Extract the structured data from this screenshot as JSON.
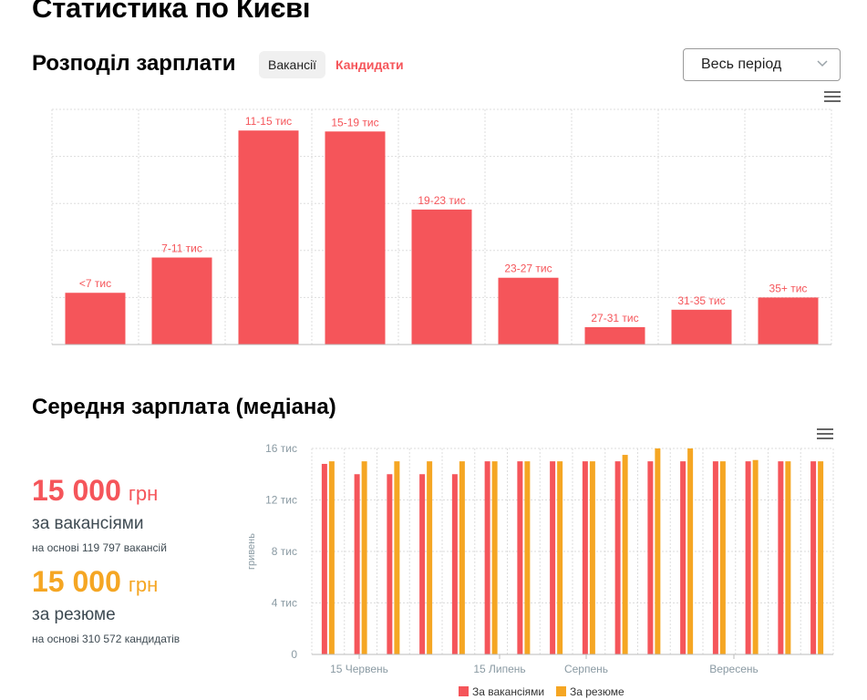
{
  "page": {
    "title": "Статистика по Києві"
  },
  "distribution": {
    "title": "Розподіл зарплати",
    "tabs": [
      {
        "label": "Вакансії"
      },
      {
        "label": "Кандидати"
      }
    ],
    "active_tab": "Кандидати",
    "period_select": {
      "value": "Весь період"
    }
  },
  "median": {
    "title": "Середня зарплата (медіана)",
    "vacancies": {
      "value": "15 000",
      "unit": "грн",
      "label": "за вакансіями",
      "note": "на основі 119 797 вакансій"
    },
    "resumes": {
      "value": "15 000",
      "unit": "грн",
      "label": "за резюме",
      "note": "на основі 310 572 кандидатів"
    }
  },
  "colors": {
    "vacancies": "#f5555a",
    "resumes": "#f5a623",
    "grid": "#dddddd",
    "axis_text": "#8a9aa3"
  },
  "chart_data": [
    {
      "type": "bar",
      "categories": [
        "<7 тис",
        "7-11 тис",
        "11-15 тис",
        "15-19 тис",
        "19-23 тис",
        "23-27 тис",
        "27-31 тис",
        "31-35 тис",
        "35+ тис"
      ],
      "values": [
        11,
        18.5,
        45.5,
        45.3,
        28.7,
        14.2,
        3.7,
        7.4,
        10
      ],
      "ylim": [
        0,
        50
      ],
      "grid": true,
      "data_labels": true
    },
    {
      "type": "bar",
      "ylabel": "гривень",
      "yticks": [
        "16 тис",
        "12 тис",
        "8 тис",
        "4 тис",
        "0"
      ],
      "ylim": [
        0,
        16000
      ],
      "xtick_labels": [
        "15 Червень",
        "15 Липень",
        "Серпень",
        "Вересень"
      ],
      "series": [
        {
          "name": "За вакансіями",
          "values": [
            14800,
            14000,
            14000,
            14000,
            14000,
            15000,
            15000,
            15000,
            15000,
            15000,
            15000,
            15000,
            15000,
            15000,
            15000,
            15000
          ]
        },
        {
          "name": "За резюме",
          "values": [
            15000,
            15000,
            15000,
            15000,
            15000,
            15000,
            15000,
            15000,
            15000,
            15500,
            16000,
            16000,
            15000,
            15100,
            15000,
            15000
          ]
        }
      ],
      "legend": "bottom"
    }
  ]
}
